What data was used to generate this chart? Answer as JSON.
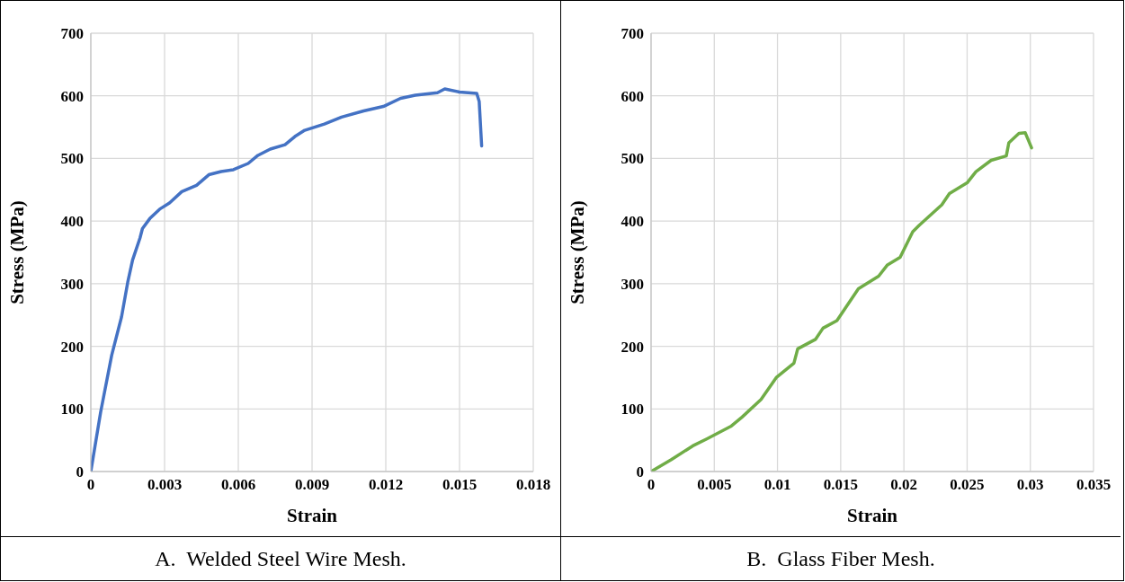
{
  "chart_data": [
    {
      "type": "line",
      "xlabel": "Strain",
      "ylabel": "Stress (MPa)",
      "xlim": [
        0,
        0.018
      ],
      "xticks": [
        0,
        0.003,
        0.006,
        0.009,
        0.012,
        0.015,
        0.018
      ],
      "ylim": [
        0,
        700
      ],
      "yticks": [
        0,
        100,
        200,
        300,
        400,
        500,
        600,
        700
      ],
      "grid": true,
      "legend": false,
      "marker": "none",
      "line_style": "solid",
      "annotations": [
        "A.  Welded Steel Wire Mesh."
      ],
      "series": [
        {
          "color": "#4472c4",
          "x": [
            0,
            0.0004,
            0.00085,
            0.00125,
            0.0015,
            0.0017,
            0.002,
            0.0021,
            0.0024,
            0.0028,
            0.0032,
            0.0037,
            0.0043,
            0.0048,
            0.0053,
            0.0058,
            0.0064,
            0.0068,
            0.0073,
            0.0079,
            0.0083,
            0.0087,
            0.0095,
            0.0102,
            0.0111,
            0.0119,
            0.0126,
            0.0132,
            0.0141,
            0.0144,
            0.015,
            0.0157,
            0.0158,
            0.0159
          ],
          "values": [
            0,
            95,
            186,
            247,
            302,
            338,
            373,
            388,
            404,
            419,
            429,
            447,
            457,
            474,
            479,
            482,
            492,
            505,
            515,
            522,
            535,
            545,
            555,
            566,
            576,
            583,
            596,
            601,
            605,
            611,
            606,
            604,
            591,
            520
          ]
        }
      ]
    },
    {
      "type": "line",
      "xlabel": "Strain",
      "ylabel": "Stress (MPa)",
      "xlim": [
        0,
        0.035
      ],
      "xticks": [
        0,
        0.005,
        0.01,
        0.015,
        0.02,
        0.025,
        0.03,
        0.035
      ],
      "ylim": [
        0,
        700
      ],
      "yticks": [
        0,
        100,
        200,
        300,
        400,
        500,
        600,
        700
      ],
      "grid": true,
      "legend": false,
      "marker": "none",
      "line_style": "solid",
      "annotations": [
        "B.  Glass Fiber Mesh."
      ],
      "series": [
        {
          "color": "#70ad47",
          "x": [
            0,
            0.0016,
            0.0033,
            0.0044,
            0.0063,
            0.0072,
            0.0087,
            0.0099,
            0.0113,
            0.0116,
            0.013,
            0.0136,
            0.0147,
            0.0164,
            0.018,
            0.0187,
            0.0197,
            0.0207,
            0.0212,
            0.023,
            0.0236,
            0.025,
            0.0257,
            0.0269,
            0.0281,
            0.0283,
            0.0291,
            0.0296,
            0.0301
          ],
          "values": [
            0,
            19,
            41,
            52,
            72,
            87,
            115,
            150,
            173,
            196,
            211,
            229,
            241,
            292,
            312,
            330,
            342,
            383,
            393,
            426,
            444,
            461,
            479,
            497,
            504,
            525,
            540,
            541,
            517
          ]
        }
      ]
    }
  ]
}
